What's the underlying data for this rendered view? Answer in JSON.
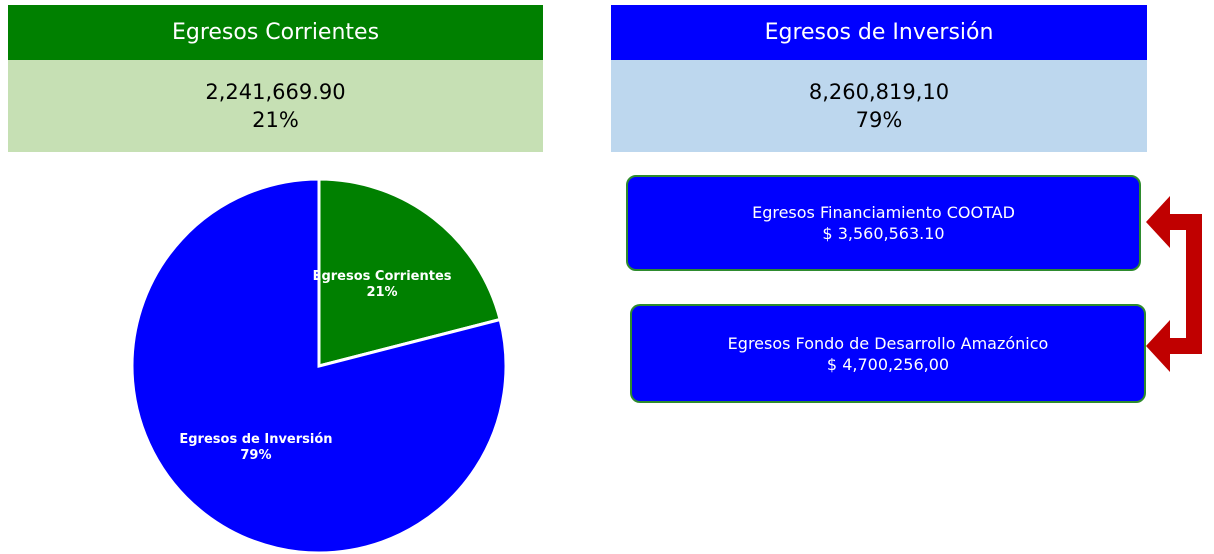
{
  "chart_data": {
    "type": "pie",
    "categories": [
      "Egresos Corrientes",
      "Egresos de Inversión"
    ],
    "values": [
      21,
      79
    ],
    "value_labels": [
      "21%",
      "79%"
    ],
    "colors": [
      "#008000",
      "#0000ff"
    ]
  },
  "panels": [
    {
      "title": "Egresos Corrientes",
      "amount": "2,241,669.90",
      "percent": "21%"
    },
    {
      "title": "Egresos de Inversión",
      "amount": "8,260,819,10",
      "percent": "79%"
    }
  ],
  "boxes": [
    {
      "label": "Egresos Financiamiento COOTAD",
      "amount": "$ 3,560,563.10"
    },
    {
      "label": "Egresos Fondo de Desarrollo Amazónico",
      "amount": "$ 4,700,256,00"
    }
  ]
}
